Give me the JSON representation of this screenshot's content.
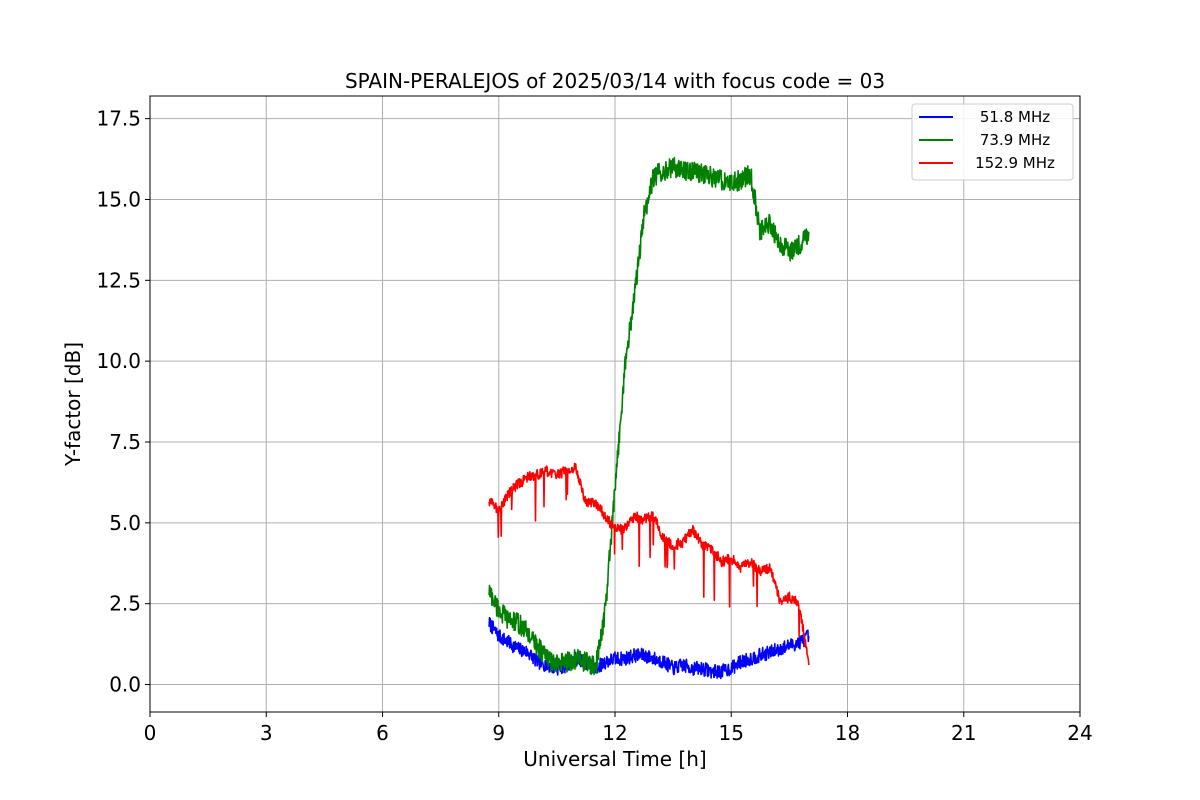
{
  "chart_data": {
    "type": "line",
    "title": "SPAIN-PERALEJOS of 2025/03/14 with focus code = 03",
    "xlabel": "Universal Time [h]",
    "ylabel": "Y-factor [dB]",
    "xlim": [
      0,
      24
    ],
    "ylim": [
      -0.85,
      18.2
    ],
    "xticks": [
      0,
      3,
      6,
      9,
      12,
      15,
      18,
      21,
      24
    ],
    "yticks": [
      0.0,
      2.5,
      5.0,
      7.5,
      10.0,
      12.5,
      15.0,
      17.5
    ],
    "xtick_labels": [
      "0",
      "3",
      "6",
      "9",
      "12",
      "15",
      "18",
      "21",
      "24"
    ],
    "ytick_labels": [
      "0.0",
      "2.5",
      "5.0",
      "7.5",
      "10.0",
      "12.5",
      "15.0",
      "17.5"
    ],
    "grid": true,
    "legend_position": "top-right",
    "series": [
      {
        "name": "51.8 MHz",
        "color": "#0000ff",
        "x": [
          8.75,
          9.0,
          9.25,
          9.5,
          9.75,
          10.0,
          10.25,
          10.5,
          10.75,
          11.0,
          11.25,
          11.5,
          11.75,
          12.0,
          12.25,
          12.5,
          12.75,
          13.0,
          13.25,
          13.5,
          13.75,
          14.0,
          14.25,
          14.5,
          14.75,
          15.0,
          15.25,
          15.5,
          15.75,
          16.0,
          16.25,
          16.5,
          16.75,
          17.0
        ],
        "y": [
          1.9,
          1.5,
          1.3,
          1.1,
          1.0,
          0.7,
          0.6,
          0.5,
          0.6,
          0.8,
          0.7,
          0.5,
          0.7,
          0.8,
          0.8,
          0.9,
          0.9,
          0.8,
          0.7,
          0.5,
          0.6,
          0.5,
          0.5,
          0.4,
          0.4,
          0.5,
          0.7,
          0.8,
          0.9,
          1.0,
          1.1,
          1.2,
          1.3,
          1.5
        ]
      },
      {
        "name": "73.9 MHz",
        "color": "#008000",
        "x": [
          8.75,
          9.0,
          9.25,
          9.5,
          9.75,
          10.0,
          10.25,
          10.5,
          10.75,
          11.0,
          11.25,
          11.5,
          11.75,
          12.0,
          12.25,
          12.5,
          12.75,
          13.0,
          13.25,
          13.5,
          13.75,
          14.0,
          14.25,
          14.5,
          14.75,
          15.0,
          15.25,
          15.5,
          15.75,
          16.0,
          16.25,
          16.5,
          16.75,
          17.0
        ],
        "y": [
          2.9,
          2.3,
          2.0,
          1.9,
          1.6,
          1.2,
          0.8,
          0.6,
          0.7,
          0.8,
          0.7,
          0.5,
          2.3,
          6.0,
          9.8,
          12.0,
          14.5,
          15.7,
          15.9,
          16.0,
          15.9,
          15.9,
          15.8,
          15.7,
          15.6,
          15.5,
          15.6,
          15.8,
          14.0,
          14.3,
          13.6,
          13.4,
          13.6,
          14.0
        ]
      },
      {
        "name": "152.9 MHz",
        "color": "#ff0000",
        "x": [
          8.75,
          9.0,
          9.25,
          9.5,
          9.75,
          10.0,
          10.25,
          10.5,
          10.75,
          11.0,
          11.25,
          11.5,
          11.75,
          12.0,
          12.25,
          12.5,
          12.75,
          13.0,
          13.25,
          13.5,
          13.75,
          14.0,
          14.25,
          14.5,
          14.75,
          15.0,
          15.25,
          15.5,
          15.75,
          16.0,
          16.25,
          16.5,
          16.75,
          17.0
        ],
        "y": [
          5.7,
          5.4,
          5.9,
          6.2,
          6.4,
          6.5,
          6.6,
          6.5,
          6.6,
          6.7,
          5.6,
          5.6,
          5.2,
          4.8,
          4.8,
          5.2,
          5.1,
          5.2,
          4.5,
          4.3,
          4.4,
          4.8,
          4.3,
          4.2,
          3.8,
          3.9,
          3.6,
          3.8,
          3.5,
          3.6,
          2.6,
          2.7,
          2.5,
          0.6
        ]
      }
    ]
  }
}
